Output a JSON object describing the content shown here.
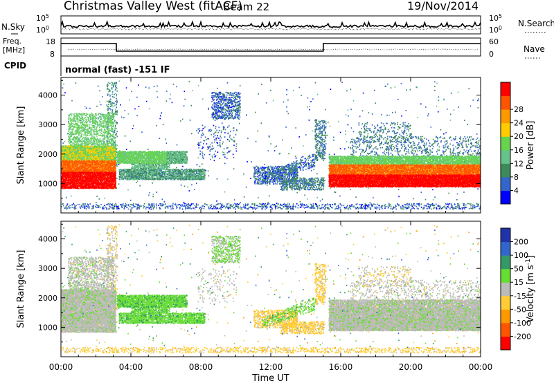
{
  "header": {
    "station": "Christmas Valley West (fitACF)",
    "beam": "Beam 22",
    "date": "19/Nov/2014"
  },
  "left_labels": {
    "nsky": "N.Sky",
    "freq_line1": "Freq.",
    "freq_line2": "[MHz]",
    "cpid": "CPID"
  },
  "right_labels": {
    "nsearch": "N.Search",
    "nave": "Nave"
  },
  "cpid_text": "normal (fast) -151 IF",
  "colors": {
    "power_scale": [
      "#0000ff",
      "#3366cc",
      "#3d8a5a",
      "#66c28a",
      "#66d44d",
      "#ffcc00",
      "#ff9900",
      "#ff5500",
      "#ff0000"
    ],
    "velocity_scale": [
      "#ff0000",
      "#ff5500",
      "#ff9900",
      "#ffcc33",
      "#bbbbb8",
      "#66dd33",
      "#339966",
      "#3366cc",
      "#2233aa"
    ]
  },
  "chart_data": [
    {
      "type": "line",
      "panel": "noise",
      "ylabel_left": "N.Sky",
      "ylabel_right": "N.Search",
      "yticks_left": [
        "10^5",
        "10^0"
      ],
      "yticks_right": [
        "10^5",
        "10^0"
      ]
    },
    {
      "type": "line",
      "panel": "frequency",
      "ylabel_left": "Freq. [MHz]",
      "yticks_left": [
        18,
        8
      ],
      "yticks_right": [
        60,
        0
      ],
      "ylabel_right": "Nave",
      "series": [
        {
          "name": "Freq.",
          "x": [
            "00:00",
            "03:10",
            "03:10",
            "15:00",
            "15:00",
            "24:00"
          ],
          "values": [
            15.5,
            15.5,
            10,
            10,
            15.5,
            15.5
          ]
        }
      ]
    },
    {
      "type": "heatmap",
      "panel": "power",
      "ylabel": "Slant Range [km]",
      "ylim": [
        0,
        4600
      ],
      "yticks": [
        1000,
        2000,
        3000,
        4000
      ],
      "xlim": [
        "00:00",
        "24:00"
      ],
      "colorbar": {
        "label": "Power [dB]",
        "ticks": [
          4,
          8,
          12,
          16,
          20,
          24,
          28
        ]
      }
    },
    {
      "type": "heatmap",
      "panel": "velocity",
      "ylabel": "Slant Range [km]",
      "ylim": [
        0,
        4600
      ],
      "yticks": [
        1000,
        2000,
        3000,
        4000
      ],
      "xlim": [
        "00:00",
        "24:00"
      ],
      "xlabel": "Time UT",
      "xticks": [
        "00:00",
        "04:00",
        "08:00",
        "12:00",
        "16:00",
        "20:00",
        "00:00"
      ],
      "colorbar": {
        "label": "Velocity [m s^-1]",
        "ticks": [
          200,
          100,
          50,
          15,
          -15,
          -50,
          -100,
          -200
        ]
      }
    }
  ]
}
